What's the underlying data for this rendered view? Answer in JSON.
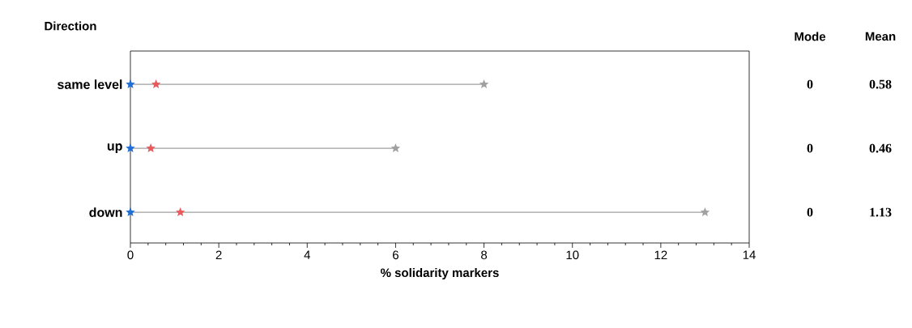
{
  "chart_data": {
    "type": "scatter",
    "orientation": "horizontal",
    "marker": "star",
    "ylabel": "Direction",
    "xlabel": "% solidarity markers",
    "categories": [
      "same level",
      "up",
      "down"
    ],
    "xlim": [
      0,
      14
    ],
    "xticks": [
      0,
      2,
      4,
      6,
      8,
      10,
      12,
      14
    ],
    "annotations": [
      "Mode",
      "Mean"
    ],
    "series": [
      {
        "type": "lollipop",
        "color": "#a0a0a0",
        "values": [
          8,
          6,
          13
        ]
      },
      {
        "color": "#1f6fd6",
        "values": [
          0,
          0,
          0
        ],
        "value_labels": [
          "0",
          "0",
          "0"
        ]
      },
      {
        "type": "scatter",
        "color": "#e85a5c",
        "values": [
          0.58,
          0.46,
          1.13
        ],
        "value_labels": [
          "0.58",
          "0.46",
          "1.13"
        ]
      }
    ]
  }
}
